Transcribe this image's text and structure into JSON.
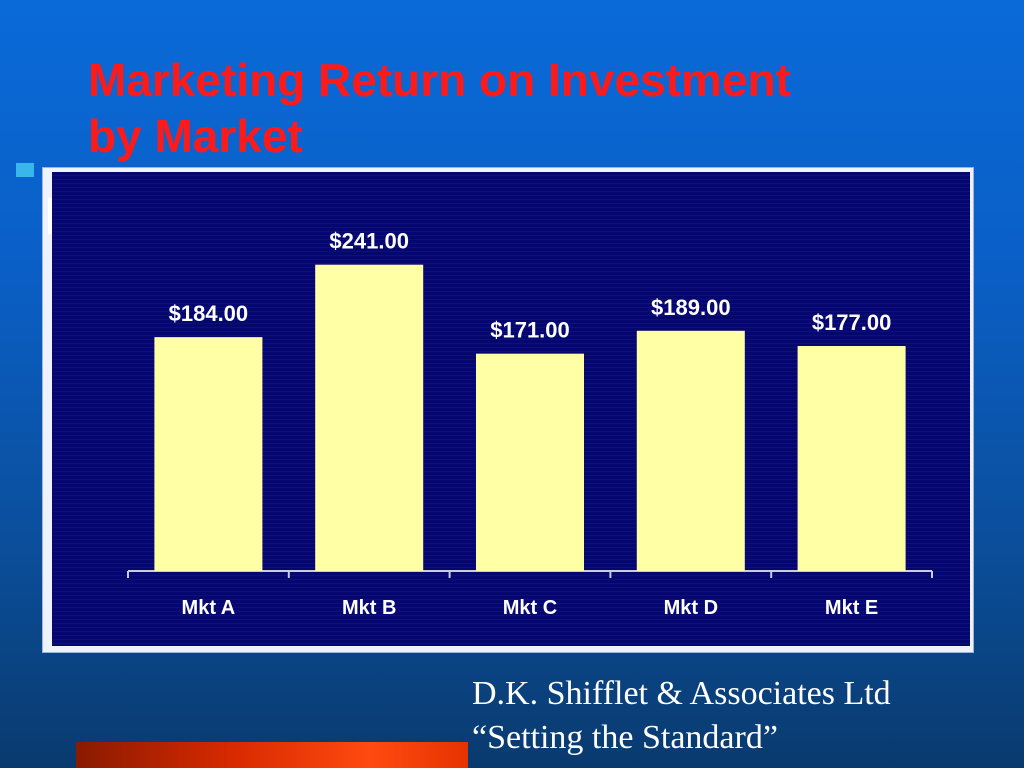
{
  "slide": {
    "title_line1": "Marketing Return on Investment",
    "title_line2": "by Market",
    "credit_line1": "D.K. Shifflet & Associates Ltd",
    "credit_line2": "“Setting the Standard”"
  },
  "colors": {
    "title": "#ff1a1a",
    "bar_fill": "#ffffa6",
    "plot_background": "#06066f",
    "accent_bar": "#e63300"
  },
  "chart_data": {
    "type": "bar",
    "categories": [
      "Mkt A",
      "Mkt B",
      "Mkt C",
      "Mkt D",
      "Mkt E"
    ],
    "values": [
      184,
      241,
      171,
      189,
      177
    ],
    "data_labels": [
      "$184.00",
      "$241.00",
      "$171.00",
      "$189.00",
      "$177.00"
    ],
    "ylim": [
      0,
      270
    ],
    "grid": false,
    "legend": "none"
  }
}
